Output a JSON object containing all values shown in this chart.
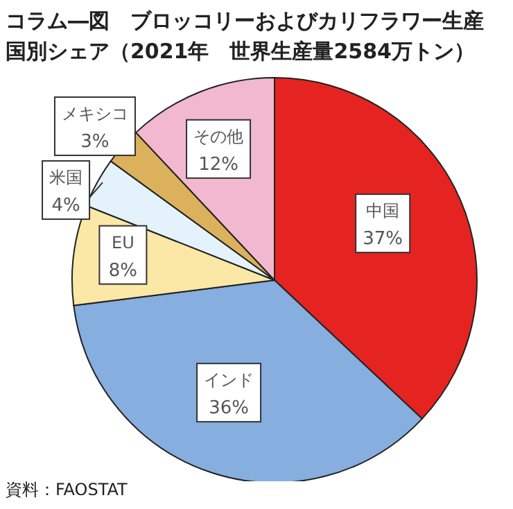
{
  "chart_data": {
    "type": "pie",
    "title": "コラム―図　ブロッコリーおよびカリフラワー生産国別シェア（2021年　世界生産量2584万トン）",
    "categories": [
      "中国",
      "インド",
      "EU",
      "米国",
      "メキシコ",
      "その他"
    ],
    "values": [
      37,
      36,
      8,
      4,
      3,
      12
    ],
    "colors": [
      "#e52421",
      "#86aede",
      "#fbe7a6",
      "#e4f3fb",
      "#dcb15c",
      "#f2b8d0"
    ],
    "value_labels": [
      "37%",
      "36%",
      "8%",
      "4%",
      "3%",
      "12%"
    ],
    "annotations": [
      "資料：FAOSTAT"
    ]
  }
}
